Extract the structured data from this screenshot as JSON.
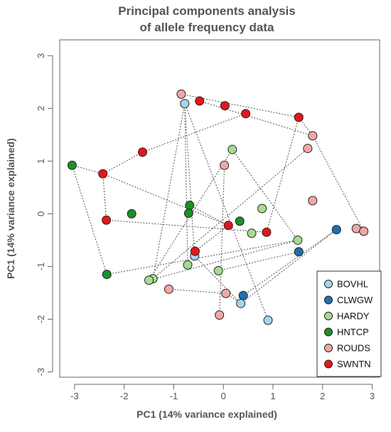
{
  "chart_data": {
    "type": "scatter",
    "title_lines": [
      "Principal components analysis",
      "of allele frequency data"
    ],
    "xlabel": "PC1 (14% variance explained)",
    "ylabel": "PC1 (14% variance explained)",
    "xlim": [
      -3.3,
      3.15
    ],
    "ylim": [
      -3.1,
      3.3
    ],
    "x_ticks": [
      -3,
      -2,
      -1,
      0,
      1,
      2,
      3
    ],
    "y_ticks": [
      -3,
      -2,
      -1,
      0,
      1,
      2,
      3
    ],
    "legend_position": "bottom-right",
    "series": [
      {
        "name": "BOVHL",
        "color": "#a6d4ec",
        "points": [
          {
            "x": -0.78,
            "y": 2.09
          },
          {
            "x": -0.58,
            "y": -0.8
          },
          {
            "x": 0.35,
            "y": -1.7
          },
          {
            "x": 0.9,
            "y": -2.02
          }
        ]
      },
      {
        "name": "CLWGW",
        "color": "#1f6fb0",
        "points": [
          {
            "x": 2.28,
            "y": -0.3
          },
          {
            "x": 1.52,
            "y": -0.72
          },
          {
            "x": 0.4,
            "y": -1.55
          }
        ]
      },
      {
        "name": "HARDY",
        "color": "#a3dc8f",
        "points": [
          {
            "x": 0.18,
            "y": 1.22
          },
          {
            "x": 0.78,
            "y": 0.1
          },
          {
            "x": 0.57,
            "y": -0.37
          },
          {
            "x": 1.5,
            "y": -0.5
          },
          {
            "x": -0.72,
            "y": -0.97
          },
          {
            "x": -0.1,
            "y": -1.08
          },
          {
            "x": -1.42,
            "y": -1.23
          },
          {
            "x": -1.5,
            "y": -1.26
          }
        ]
      },
      {
        "name": "HNTCP",
        "color": "#1d8f2a",
        "points": [
          {
            "x": -3.05,
            "y": 0.92
          },
          {
            "x": -1.85,
            "y": 0.0
          },
          {
            "x": -0.68,
            "y": 0.16
          },
          {
            "x": -0.7,
            "y": 0.01
          },
          {
            "x": 0.33,
            "y": -0.14
          },
          {
            "x": -2.35,
            "y": -1.15
          }
        ]
      },
      {
        "name": "ROUDS",
        "color": "#f4a6a6",
        "points": [
          {
            "x": -0.85,
            "y": 2.27
          },
          {
            "x": 1.8,
            "y": 1.48
          },
          {
            "x": 1.7,
            "y": 1.24
          },
          {
            "x": 0.02,
            "y": 0.92
          },
          {
            "x": 1.8,
            "y": 0.25
          },
          {
            "x": 2.68,
            "y": -0.28
          },
          {
            "x": 2.83,
            "y": -0.33
          },
          {
            "x": -1.1,
            "y": -1.43
          },
          {
            "x": 0.05,
            "y": -1.51
          },
          {
            "x": -0.08,
            "y": -1.92
          }
        ]
      },
      {
        "name": "SWNTN",
        "color": "#e8141a",
        "points": [
          {
            "x": -0.48,
            "y": 2.14
          },
          {
            "x": 0.03,
            "y": 2.05
          },
          {
            "x": 0.45,
            "y": 1.9
          },
          {
            "x": 1.52,
            "y": 1.83
          },
          {
            "x": -1.63,
            "y": 1.17
          },
          {
            "x": -2.43,
            "y": 0.76
          },
          {
            "x": -2.36,
            "y": -0.12
          },
          {
            "x": 0.1,
            "y": -0.22
          },
          {
            "x": 0.87,
            "y": -0.35
          },
          {
            "x": -0.57,
            "y": -0.71
          }
        ]
      }
    ],
    "connections": [
      [
        -0.85,
        2.27,
        1.52,
        1.83
      ],
      [
        1.52,
        1.83,
        1.8,
        1.48
      ],
      [
        -0.48,
        2.14,
        1.8,
        1.48
      ],
      [
        1.8,
        1.48,
        2.83,
        -0.33
      ],
      [
        0.45,
        1.9,
        -1.63,
        1.17
      ],
      [
        -1.63,
        1.17,
        -2.43,
        0.76
      ],
      [
        -2.43,
        0.76,
        -2.36,
        -0.12
      ],
      [
        -3.05,
        0.92,
        -2.43,
        0.76
      ],
      [
        -3.05,
        0.92,
        -2.35,
        -1.15
      ],
      [
        -2.43,
        0.76,
        0.1,
        -0.22
      ],
      [
        -2.36,
        -0.12,
        0.87,
        -0.35
      ],
      [
        -2.35,
        -1.15,
        1.5,
        -0.5
      ],
      [
        -1.5,
        -1.26,
        0.18,
        1.22
      ],
      [
        -1.42,
        -1.23,
        -0.78,
        2.09
      ],
      [
        -0.78,
        2.09,
        -0.58,
        -0.8
      ],
      [
        -0.78,
        2.09,
        -0.72,
        -0.97
      ],
      [
        -0.85,
        2.27,
        0.9,
        -2.02
      ],
      [
        -0.58,
        -0.8,
        0.35,
        -1.7
      ],
      [
        0.35,
        -1.7,
        2.28,
        -0.3
      ],
      [
        0.4,
        -1.55,
        2.28,
        -0.3
      ],
      [
        -0.1,
        -1.08,
        1.52,
        -0.72
      ],
      [
        1.52,
        1.83,
        0.87,
        -0.35
      ],
      [
        0.18,
        1.22,
        1.5,
        -0.5
      ],
      [
        0.02,
        0.92,
        -0.08,
        -1.92
      ],
      [
        -1.1,
        -1.43,
        0.05,
        -1.51
      ],
      [
        0.05,
        -1.51,
        0.35,
        -1.7
      ],
      [
        -0.68,
        0.16,
        0.1,
        -0.22
      ],
      [
        -1.42,
        -1.23,
        1.7,
        1.24
      ],
      [
        -1.5,
        -1.26,
        1.5,
        -0.5
      ],
      [
        -0.57,
        -0.71,
        0.1,
        -0.22
      ]
    ]
  }
}
